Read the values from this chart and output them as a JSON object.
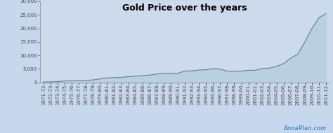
{
  "title": "Gold Price over the years",
  "labels": [
    "1971-72",
    "1972-73",
    "1973-74",
    "1974-75",
    "1975-76",
    "1976-77",
    "1977-78",
    "1978-79",
    "1979-80",
    "1980-81",
    "1981-82",
    "1982-83",
    "1983-84",
    "1984-85",
    "1985-86",
    "1986-87",
    "1987-88",
    "1988-89",
    "1989-90",
    "1990-91",
    "1991-92",
    "1992-93",
    "1993-94",
    "1994-95",
    "1995-96",
    "1996-97",
    "1997-98",
    "1998-99",
    "1999-00",
    "2000-01",
    "2001-02",
    "2002-03",
    "2003-04",
    "2004-05",
    "2005-06",
    "2006-07",
    "2007-08",
    "2008-09",
    "2009-10",
    "2010-11",
    "2011-12"
  ],
  "values": [
    185,
    215,
    306,
    540,
    600,
    685,
    755,
    950,
    1330,
    1670,
    1800,
    1900,
    2130,
    2350,
    2525,
    2725,
    3100,
    3300,
    3460,
    3350,
    4200,
    4300,
    4600,
    4700,
    5100,
    4950,
    4200,
    4100,
    4200,
    4500,
    4500,
    5200,
    5300,
    6000,
    7000,
    9000,
    10500,
    15000,
    20000,
    24000,
    25500
  ],
  "ylim": [
    0,
    30000
  ],
  "yticks": [
    0,
    5000,
    10000,
    15000,
    20000,
    25000,
    30000
  ],
  "line_color": "#5b7fa6",
  "fill_color": "#b8cfe0",
  "bg_color": "#c8d8ec",
  "plot_bg_color": "#ccdaec",
  "title_fontsize": 9,
  "tick_fontsize": 5.0,
  "watermark": "AnnaPlan.com",
  "watermark_color": "#5599cc"
}
